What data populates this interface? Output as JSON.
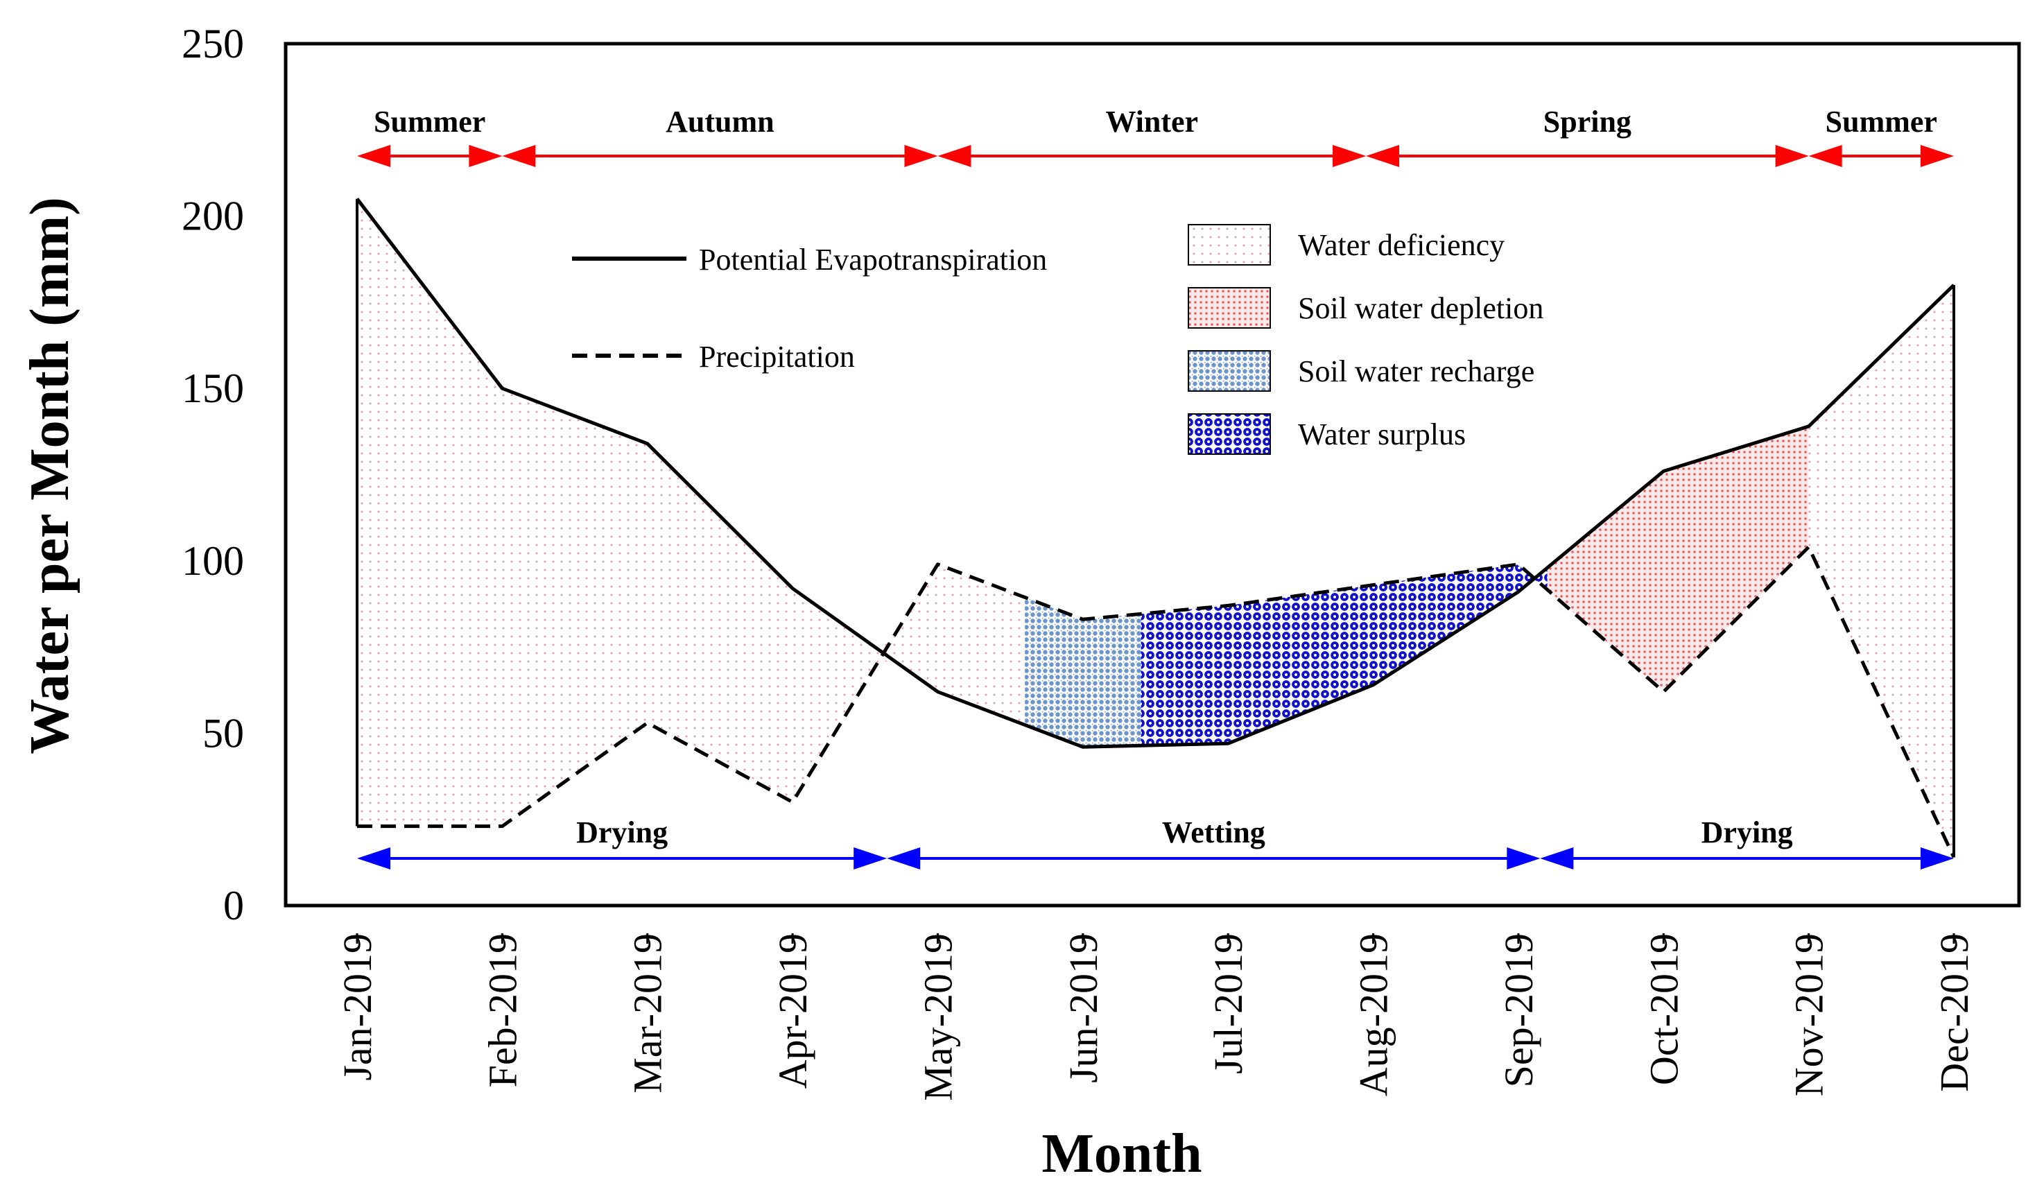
{
  "chart_data": {
    "type": "area",
    "xlabel": "Month",
    "ylabel": "Water per Month (mm)",
    "ylim": [
      0,
      250
    ],
    "y_ticks": [
      "0",
      "50",
      "100",
      "150",
      "200",
      "250"
    ],
    "categories": [
      "Jan-2019",
      "Feb-2019",
      "Mar-2019",
      "Apr-2019",
      "May-2019",
      "Jun-2019",
      "Jul-2019",
      "Aug-2019",
      "Sep-2019",
      "Oct-2019",
      "Nov-2019",
      "Dec-2019"
    ],
    "series": [
      {
        "name": "Potential  Evapotranspiration",
        "style": "solid",
        "values": [
          205,
          150,
          134,
          92,
          62,
          46,
          47,
          64,
          91,
          126,
          139,
          180
        ]
      },
      {
        "name": "Precipitation",
        "style": "dashed",
        "values": [
          23,
          23,
          53,
          30,
          99,
          83,
          87,
          93,
          99,
          62,
          104,
          14
        ]
      }
    ],
    "regions": [
      {
        "name": "Water deficiency",
        "color": "#e8a0a0",
        "from": 0,
        "to": 4.6
      },
      {
        "name": "Soil water recharge",
        "color": "#6b95cc",
        "from": 4.6,
        "to": 5.4
      },
      {
        "name": "Water surplus",
        "color": "#1010d0",
        "from": 5.4,
        "to": 8.2
      },
      {
        "name": "Soil water depletion",
        "color": "#e06060",
        "from": 8.2,
        "to": 10.0
      },
      {
        "name": "Water deficiency",
        "color": "#e8a0a0",
        "from": 10.0,
        "to": 11.0
      }
    ],
    "legend": {
      "lines": [
        "Potential  Evapotranspiration",
        "Precipitation"
      ],
      "patches": [
        {
          "label": "Water deficiency",
          "color": "#e8a0a0"
        },
        {
          "label": "Soil water depletion",
          "color": "#e06060"
        },
        {
          "label": "Soil water recharge",
          "color": "#6b95cc"
        },
        {
          "label": "Water surplus",
          "color": "#1010d0"
        }
      ]
    },
    "seasons": [
      {
        "label": "Summer",
        "from": 0,
        "to": 1.0
      },
      {
        "label": "Autumn",
        "from": 1.0,
        "to": 4.0
      },
      {
        "label": "Winter",
        "from": 4.0,
        "to": 6.95
      },
      {
        "label": "Spring",
        "from": 6.95,
        "to": 10.0
      },
      {
        "label": "Summer",
        "from": 10.0,
        "to": 11.0
      }
    ],
    "phases": [
      {
        "label": "Drying",
        "from": 0,
        "to": 3.65
      },
      {
        "label": "Wetting",
        "from": 3.65,
        "to": 8.15
      },
      {
        "label": "Drying",
        "from": 8.15,
        "to": 11.0
      }
    ],
    "colors": {
      "season_arrow": "#ff0000",
      "phase_arrow": "#0000ff",
      "line": "#000000"
    }
  }
}
